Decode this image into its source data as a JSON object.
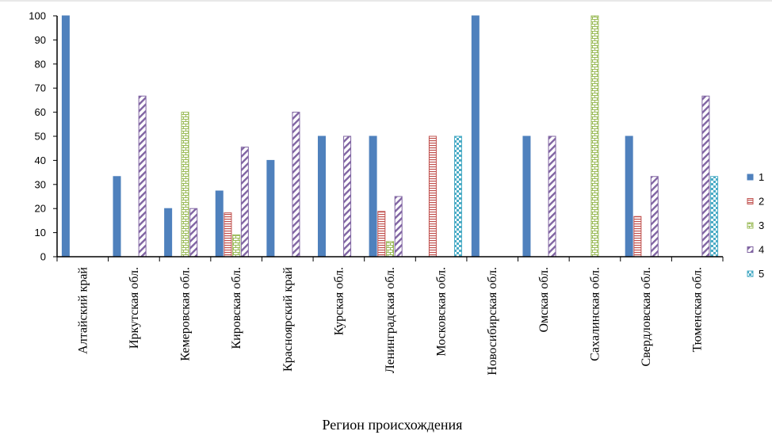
{
  "chart_data": {
    "type": "bar",
    "xlabel": "Регион происхождения",
    "ylabel": "",
    "ylim": [
      0,
      100
    ],
    "yticks": [
      0,
      10,
      20,
      30,
      40,
      50,
      60,
      70,
      80,
      90,
      100
    ],
    "legend_position": "right",
    "grid": false,
    "categories": [
      "Алтайский край",
      "Иркутская обл.",
      "Кемеровская обл.",
      "Кировская обл.",
      "Красноярский край",
      "Курская обл.",
      "Ленинградская обл.",
      "Московская обл.",
      "Новосибирская обл.",
      "Омская обл.",
      "Сахалинская обл.",
      "Свердловская обл.",
      "Тюменская обл."
    ],
    "series": [
      {
        "name": "1",
        "color": "#4F81BD",
        "pattern": "solid",
        "values": [
          100,
          33.3,
          20,
          27.3,
          40,
          50,
          50,
          0,
          100,
          50,
          0,
          50,
          0
        ]
      },
      {
        "name": "2",
        "color": "#C0504D",
        "pattern": "horizontal-lines",
        "values": [
          0,
          0,
          0,
          18.2,
          0,
          0,
          18.8,
          50,
          0,
          0,
          0,
          16.7,
          0
        ]
      },
      {
        "name": "3",
        "color": "#9BBB59",
        "pattern": "bricks",
        "values": [
          0,
          0,
          60,
          9.1,
          0,
          0,
          6.3,
          0,
          0,
          0,
          100,
          0,
          0
        ]
      },
      {
        "name": "4",
        "color": "#8064A2",
        "pattern": "diagonal-stripes",
        "values": [
          0,
          66.7,
          20,
          45.5,
          60,
          50,
          25,
          0,
          0,
          50,
          0,
          33.3,
          66.7
        ]
      },
      {
        "name": "5",
        "color": "#4BACC6",
        "pattern": "checkerboard",
        "values": [
          0,
          0,
          0,
          0,
          0,
          0,
          0,
          50,
          0,
          0,
          0,
          0,
          33.3
        ]
      }
    ]
  }
}
